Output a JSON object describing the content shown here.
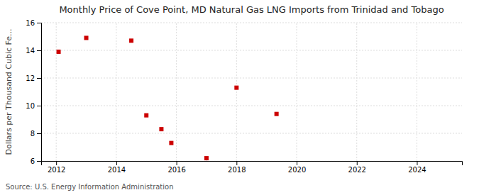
{
  "chart_data": {
    "type": "scatter",
    "title": "Monthly Price of Cove Point, MD Natural Gas LNG Imports from Trinidad and Tobago",
    "ylabel": "Dollars per Thousand Cubic Fe...",
    "annotations": [
      "Source: U.S. Energy Information Administration"
    ],
    "x": [
      2012.08,
      2013.0,
      2014.5,
      2015.0,
      2015.5,
      2015.83,
      2017.0,
      2018.0,
      2019.33
    ],
    "values": [
      13.9,
      14.9,
      14.7,
      9.3,
      8.3,
      7.3,
      6.2,
      11.3,
      9.4
    ],
    "color": "#cc0000",
    "marker": "square",
    "xlim": [
      2011.5,
      2025.5
    ],
    "ylim": [
      6,
      16
    ],
    "xticks": [
      2012,
      2014,
      2016,
      2018,
      2020,
      2022,
      2024
    ],
    "yticks": [
      6,
      8,
      10,
      12,
      14,
      16
    ],
    "grid": true
  }
}
